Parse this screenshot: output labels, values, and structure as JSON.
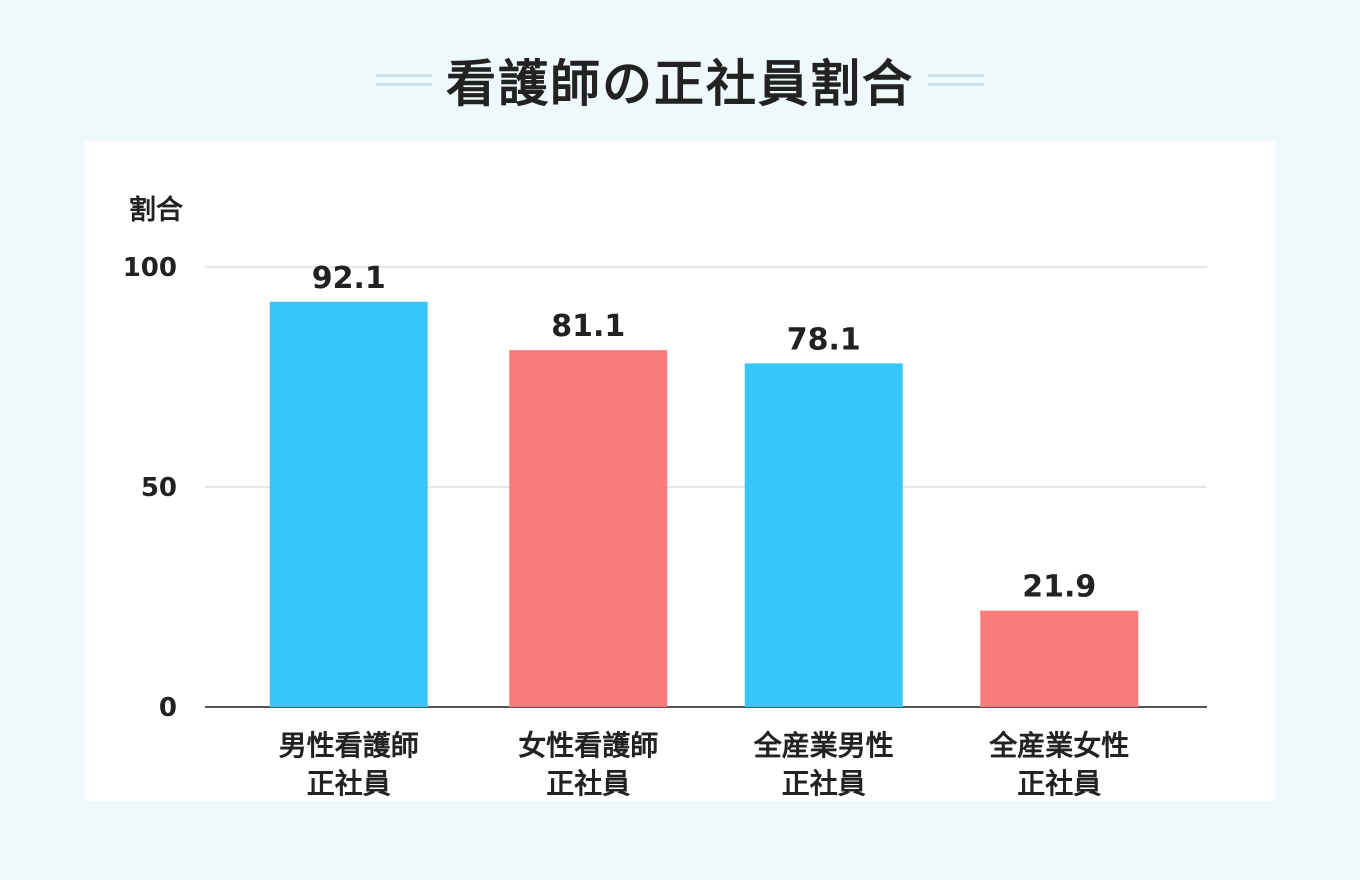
{
  "page": {
    "title": "看護師の正社員割合"
  },
  "colors": {
    "background": "#eff8fb",
    "card": "#ffffff",
    "title_deco": "#c9e3ea",
    "gridline": "#e6e6e6",
    "axis": "#555555",
    "blue": "#38c5f9",
    "red": "#f97b7a"
  },
  "chart_data": {
    "type": "bar",
    "title": "看護師の正社員割合",
    "xlabel": "",
    "ylabel": "割合",
    "ylim": [
      0,
      100
    ],
    "yticks": [
      "0",
      "50",
      "100"
    ],
    "grid": true,
    "categories": [
      [
        "男性看護師",
        "正社員"
      ],
      [
        "女性看護師",
        "正社員"
      ],
      [
        "全産業男性",
        "正社員"
      ],
      [
        "全産業女性",
        "正社員"
      ]
    ],
    "values": [
      92.1,
      81.1,
      78.1,
      21.9
    ],
    "value_labels": [
      "92.1",
      "81.1",
      "78.1",
      "21.9"
    ],
    "bar_colors": [
      "#38c5f9",
      "#f97b7a",
      "#38c5f9",
      "#f97b7a"
    ]
  }
}
